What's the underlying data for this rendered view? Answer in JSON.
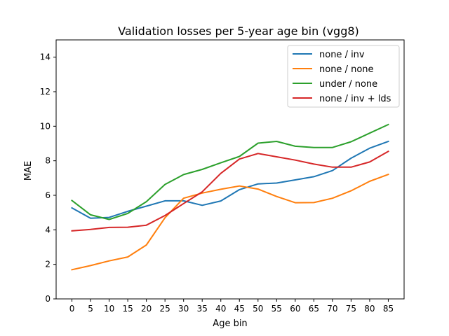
{
  "chart_data": {
    "type": "line",
    "title": "Validation losses per 5-year age bin (vgg8)",
    "xlabel": "Age bin",
    "ylabel": "MAE",
    "x": [
      0,
      5,
      10,
      15,
      20,
      25,
      30,
      35,
      40,
      45,
      50,
      55,
      60,
      65,
      70,
      75,
      80,
      85
    ],
    "xticks": [
      "0",
      "5",
      "10",
      "15",
      "20",
      "25",
      "30",
      "35",
      "40",
      "45",
      "50",
      "55",
      "60",
      "65",
      "70",
      "75",
      "80",
      "85"
    ],
    "xlim": [
      -4.25,
      89.25
    ],
    "ylim": [
      0,
      15
    ],
    "yticks": [
      "0",
      "2",
      "4",
      "6",
      "8",
      "10",
      "12",
      "14"
    ],
    "grid": false,
    "legend": "top-right",
    "series": [
      {
        "name": "none / inv",
        "color": "#1f77b4",
        "values": [
          5.27,
          4.67,
          4.72,
          5.07,
          5.37,
          5.68,
          5.68,
          5.42,
          5.67,
          6.33,
          6.66,
          6.71,
          6.89,
          7.08,
          7.43,
          8.15,
          8.73,
          9.12
        ]
      },
      {
        "name": "none / none",
        "color": "#ff7f0e",
        "values": [
          1.69,
          1.93,
          2.2,
          2.43,
          3.12,
          4.7,
          5.83,
          6.13,
          6.35,
          6.54,
          6.36,
          5.93,
          5.57,
          5.58,
          5.83,
          6.26,
          6.81,
          7.21
        ]
      },
      {
        "name": "under / none",
        "color": "#2ca02c",
        "values": [
          5.7,
          4.87,
          4.6,
          4.95,
          5.63,
          6.63,
          7.2,
          7.5,
          7.88,
          8.25,
          9.02,
          9.12,
          8.84,
          8.77,
          8.77,
          9.1,
          9.6,
          10.1
        ]
      },
      {
        "name": "none / inv + lds",
        "color": "#d62728",
        "values": [
          3.94,
          4.02,
          4.14,
          4.15,
          4.27,
          4.83,
          5.52,
          6.2,
          7.27,
          8.1,
          8.42,
          8.23,
          8.04,
          7.81,
          7.63,
          7.63,
          7.93,
          8.54
        ]
      }
    ]
  }
}
